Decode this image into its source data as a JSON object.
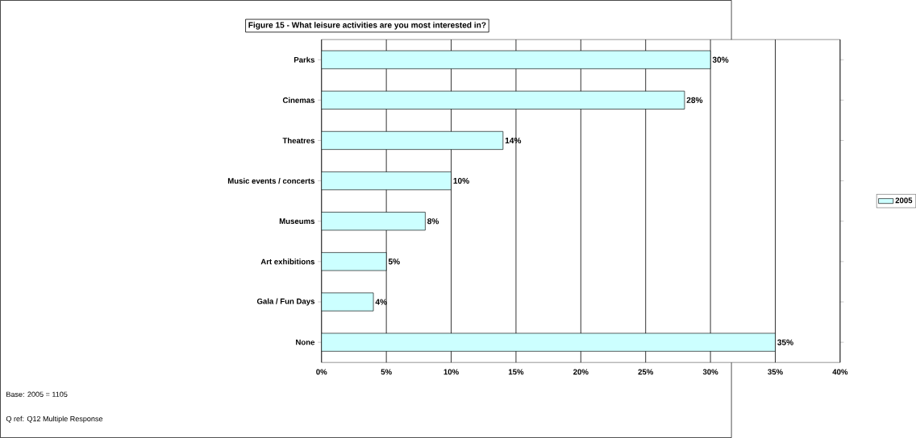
{
  "chart_data": {
    "type": "bar",
    "orientation": "horizontal",
    "title": "Figure 15 - What leisure activities are you most interested in?",
    "categories": [
      "Parks",
      "Cinemas",
      "Theatres",
      "Music events / concerts",
      "Museums",
      "Art exhibitions",
      "Gala / Fun Days",
      "None"
    ],
    "series": [
      {
        "name": "2005",
        "color": "#ccffff",
        "values": [
          30,
          28,
          14,
          10,
          8,
          5,
          4,
          35
        ],
        "value_labels": [
          "30%",
          "28%",
          "14%",
          "10%",
          "8%",
          "5%",
          "4%",
          "35%"
        ]
      }
    ],
    "xlim": [
      0,
      40
    ],
    "xticks": [
      {
        "value": 0,
        "label": "0%"
      },
      {
        "value": 5,
        "label": "5%"
      },
      {
        "value": 10,
        "label": "10%"
      },
      {
        "value": 15,
        "label": "15%"
      },
      {
        "value": 20,
        "label": "20%"
      },
      {
        "value": 25,
        "label": "25%"
      },
      {
        "value": 30,
        "label": "30%"
      },
      {
        "value": 35,
        "label": "35%"
      },
      {
        "value": 40,
        "label": "40%"
      }
    ],
    "grid": "x",
    "legend": "right",
    "annotations": [
      "Base: 2005 = 1105",
      "Q ref: Q12   Multiple Response"
    ]
  }
}
